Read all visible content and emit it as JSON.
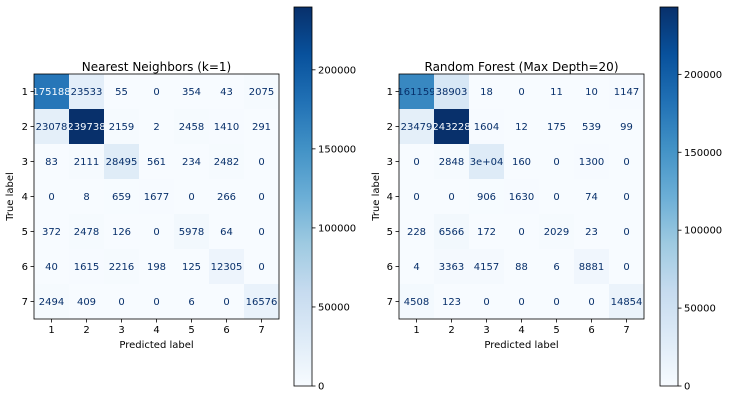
{
  "chart_data": [
    {
      "type": "heatmap",
      "title": "Nearest Neighbors (k=1)",
      "xlabel": "Predicted label",
      "ylabel": "True label",
      "x_categories": [
        "1",
        "2",
        "3",
        "4",
        "5",
        "6",
        "7"
      ],
      "y_categories": [
        "1",
        "2",
        "3",
        "4",
        "5",
        "6",
        "7"
      ],
      "values": [
        [
          175188,
          23533,
          55,
          0,
          354,
          43,
          2075
        ],
        [
          23078,
          239738,
          2159,
          2,
          2458,
          1410,
          291
        ],
        [
          83,
          2111,
          28495,
          561,
          234,
          2482,
          0
        ],
        [
          0,
          8,
          659,
          1677,
          0,
          266,
          0
        ],
        [
          372,
          2478,
          126,
          0,
          5978,
          64,
          0
        ],
        [
          40,
          1615,
          2216,
          198,
          125,
          12305,
          0
        ],
        [
          2494,
          409,
          0,
          0,
          6,
          0,
          16576
        ]
      ],
      "value_labels": [
        [
          "175188",
          "23533",
          "55",
          "0",
          "354",
          "43",
          "2075"
        ],
        [
          "23078",
          "239738",
          "2159",
          "2",
          "2458",
          "1410",
          "291"
        ],
        [
          "83",
          "2111",
          "28495",
          "561",
          "234",
          "2482",
          "0"
        ],
        [
          "0",
          "8",
          "659",
          "1677",
          "0",
          "266",
          "0"
        ],
        [
          "372",
          "2478",
          "126",
          "0",
          "5978",
          "64",
          "0"
        ],
        [
          "40",
          "1615",
          "2216",
          "198",
          "125",
          "12305",
          "0"
        ],
        [
          "2494",
          "409",
          "0",
          "0",
          "6",
          "0",
          "16576"
        ]
      ],
      "colorscale": "Blues",
      "colorbar": {
        "range": [
          0,
          239738
        ],
        "ticks": [
          0,
          50000,
          100000,
          150000,
          200000
        ],
        "tick_labels": [
          "0",
          "50000",
          "100000",
          "150000",
          "200000"
        ]
      }
    },
    {
      "type": "heatmap",
      "title": "Random Forest (Max Depth=20)",
      "xlabel": "Predicted label",
      "ylabel": "True label",
      "x_categories": [
        "1",
        "2",
        "3",
        "4",
        "5",
        "6",
        "7"
      ],
      "y_categories": [
        "1",
        "2",
        "3",
        "4",
        "5",
        "6",
        "7"
      ],
      "values": [
        [
          161159,
          38903,
          18,
          0,
          11,
          10,
          1147
        ],
        [
          23479,
          243228,
          1604,
          12,
          175,
          539,
          99
        ],
        [
          0,
          2848,
          30000,
          160,
          0,
          1300,
          0
        ],
        [
          0,
          0,
          906,
          1630,
          0,
          74,
          0
        ],
        [
          228,
          6566,
          172,
          0,
          2029,
          23,
          0
        ],
        [
          4,
          3363,
          4157,
          88,
          6,
          8881,
          0
        ],
        [
          4508,
          123,
          0,
          0,
          0,
          0,
          14854
        ]
      ],
      "value_labels": [
        [
          "161159",
          "38903",
          "18",
          "0",
          "11",
          "10",
          "1147"
        ],
        [
          "23479",
          "243228",
          "1604",
          "12",
          "175",
          "539",
          "99"
        ],
        [
          "0",
          "2848",
          "3e+04",
          "160",
          "0",
          "1300",
          "0"
        ],
        [
          "0",
          "0",
          "906",
          "1630",
          "0",
          "74",
          "0"
        ],
        [
          "228",
          "6566",
          "172",
          "0",
          "2029",
          "23",
          "0"
        ],
        [
          "4",
          "3363",
          "4157",
          "88",
          "6",
          "8881",
          "0"
        ],
        [
          "4508",
          "123",
          "0",
          "0",
          "0",
          "0",
          "14854"
        ]
      ],
      "colorscale": "Blues",
      "colorbar": {
        "range": [
          0,
          243228
        ],
        "ticks": [
          0,
          50000,
          100000,
          150000,
          200000
        ],
        "tick_labels": [
          "0",
          "50000",
          "100000",
          "150000",
          "200000"
        ]
      }
    }
  ]
}
